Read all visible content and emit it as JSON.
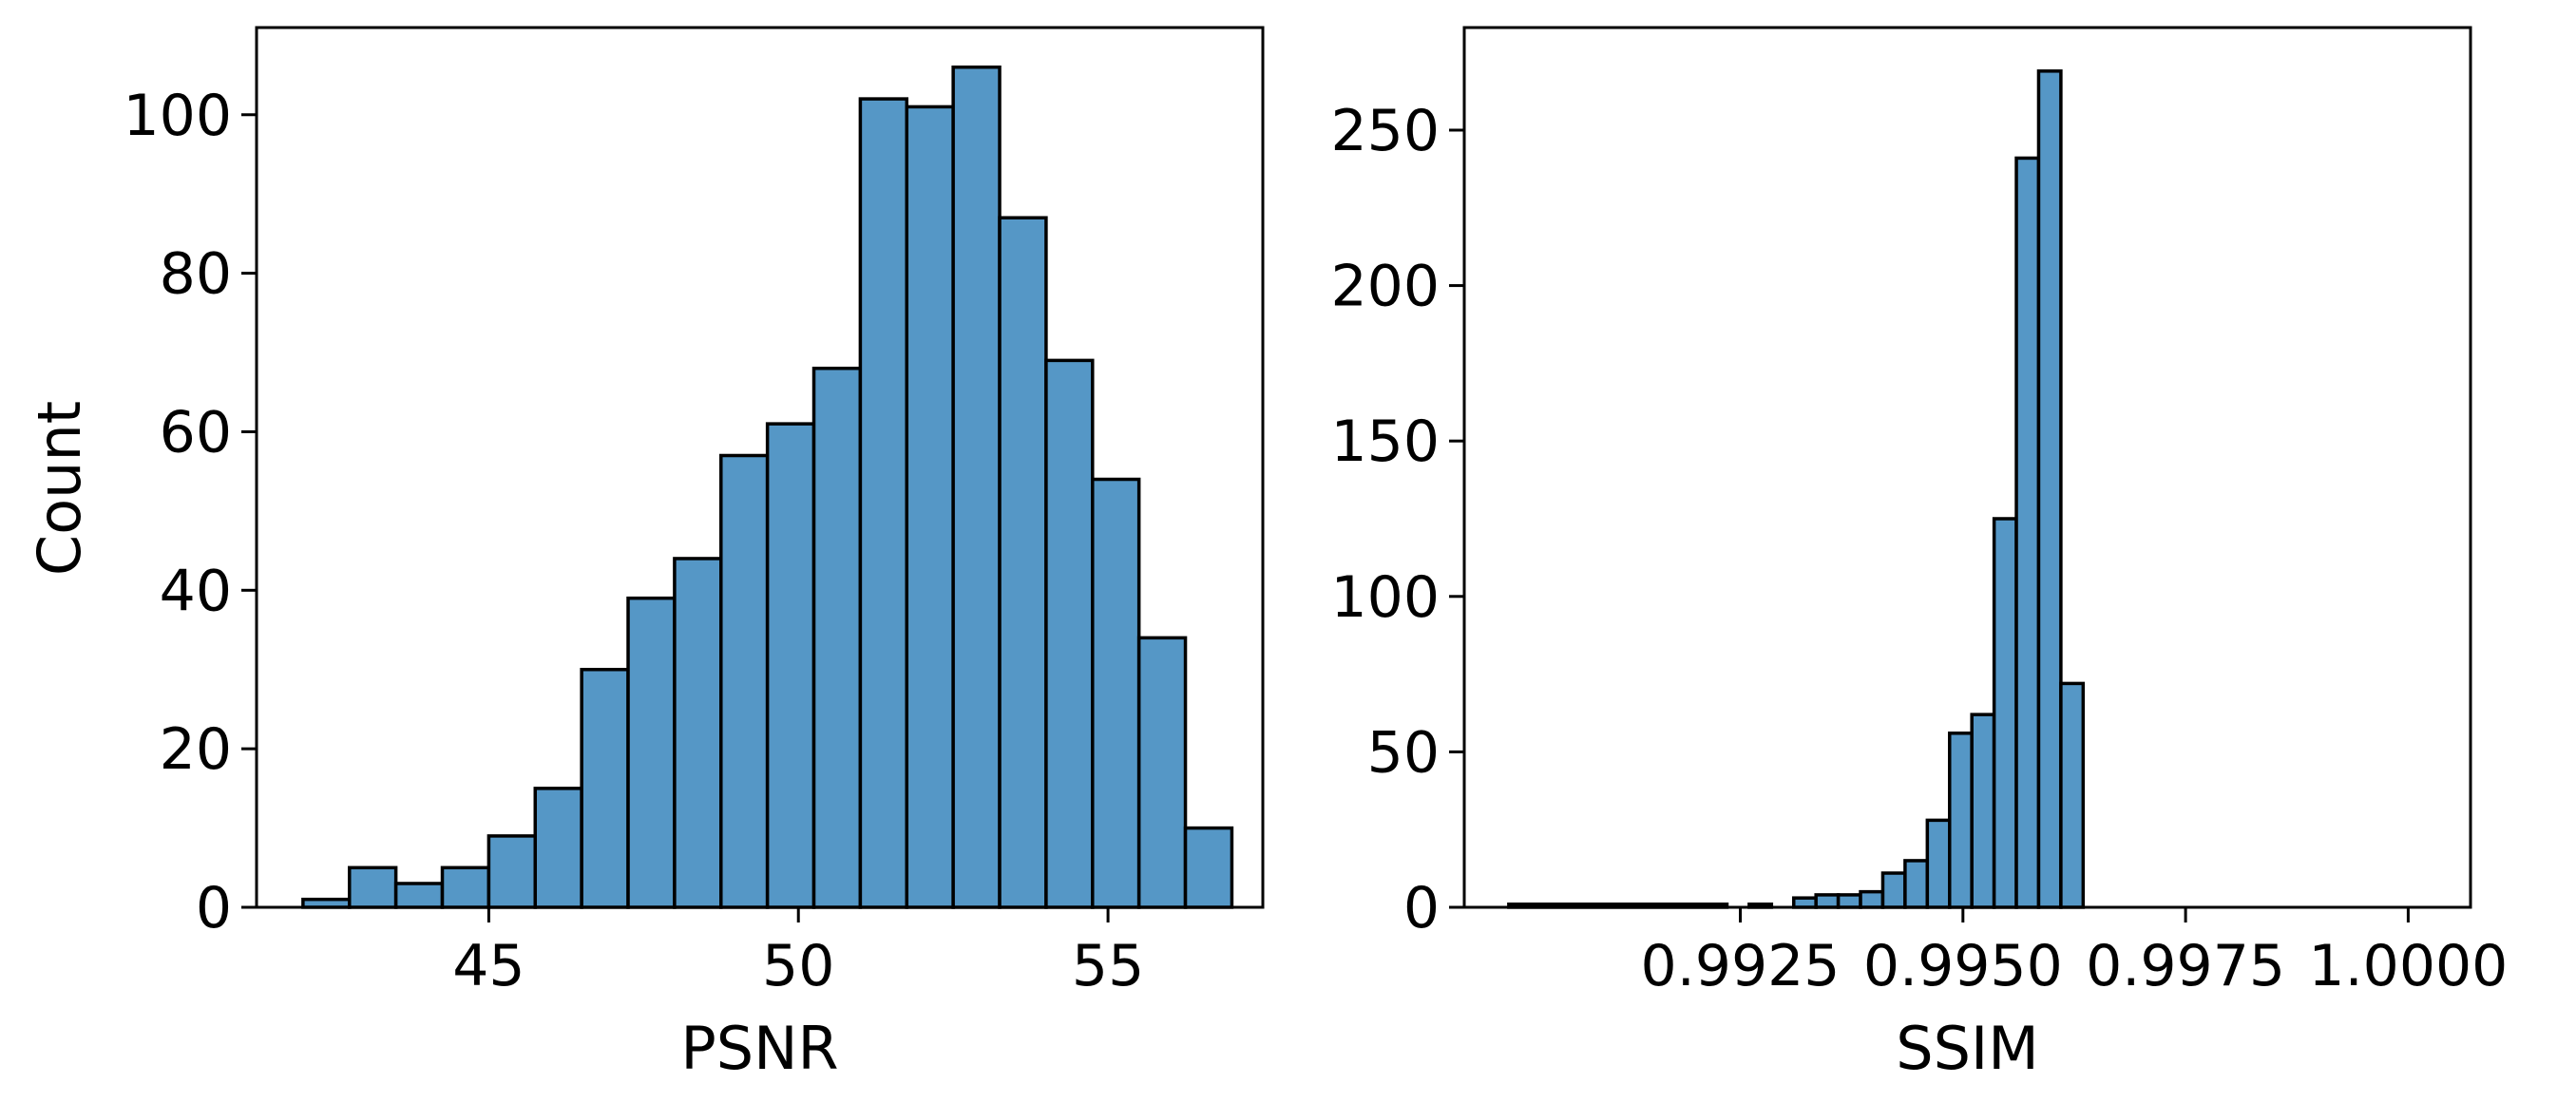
{
  "chart_data": [
    {
      "type": "bar",
      "subtype": "histogram",
      "xlabel": "PSNR",
      "ylabel": "Count",
      "xlim": [
        41.25,
        57.5
      ],
      "ylim": [
        0,
        111
      ],
      "xticks": [
        45,
        50,
        55
      ],
      "xtick_labels": [
        "45",
        "50",
        "55"
      ],
      "yticks": [
        0,
        20,
        40,
        60,
        80,
        100
      ],
      "ytick_labels": [
        "0",
        "20",
        "40",
        "60",
        "80",
        "100"
      ],
      "grid": false,
      "bins": [
        {
          "x0": 42.0,
          "x1": 42.75,
          "count": 1
        },
        {
          "x0": 42.75,
          "x1": 43.5,
          "count": 5
        },
        {
          "x0": 43.5,
          "x1": 44.25,
          "count": 3
        },
        {
          "x0": 44.25,
          "x1": 45.0,
          "count": 5
        },
        {
          "x0": 45.0,
          "x1": 45.75,
          "count": 9
        },
        {
          "x0": 45.75,
          "x1": 46.5,
          "count": 15
        },
        {
          "x0": 46.5,
          "x1": 47.25,
          "count": 30
        },
        {
          "x0": 47.25,
          "x1": 48.0,
          "count": 39
        },
        {
          "x0": 48.0,
          "x1": 48.75,
          "count": 44
        },
        {
          "x0": 48.75,
          "x1": 49.5,
          "count": 57
        },
        {
          "x0": 49.5,
          "x1": 50.25,
          "count": 61
        },
        {
          "x0": 50.25,
          "x1": 51.0,
          "count": 68
        },
        {
          "x0": 51.0,
          "x1": 51.75,
          "count": 102
        },
        {
          "x0": 51.75,
          "x1": 52.5,
          "count": 101
        },
        {
          "x0": 52.5,
          "x1": 53.25,
          "count": 106
        },
        {
          "x0": 53.25,
          "x1": 54.0,
          "count": 87
        },
        {
          "x0": 54.0,
          "x1": 54.75,
          "count": 69
        },
        {
          "x0": 54.75,
          "x1": 55.5,
          "count": 54
        },
        {
          "x0": 55.5,
          "x1": 56.25,
          "count": 34
        },
        {
          "x0": 56.25,
          "x1": 57.0,
          "count": 10
        }
      ],
      "color": "#5597c6"
    },
    {
      "type": "bar",
      "subtype": "histogram",
      "xlabel": "SSIM",
      "ylabel": "",
      "xlim": [
        0.9894,
        1.0007
      ],
      "ylim": [
        0,
        283
      ],
      "xticks": [
        0.9925,
        0.995,
        0.9975,
        1.0
      ],
      "xtick_labels": [
        "0.9925",
        "0.9950",
        "0.9975",
        "1.0000"
      ],
      "yticks": [
        0,
        50,
        100,
        150,
        200,
        250
      ],
      "ytick_labels": [
        "0",
        "50",
        "100",
        "150",
        "200",
        "250"
      ],
      "grid": false,
      "bins": [
        {
          "x0": 0.9899,
          "x1": 0.99235,
          "count": 1
        },
        {
          "x0": 0.99235,
          "x1": 0.9926,
          "count": 0
        },
        {
          "x0": 0.9926,
          "x1": 0.99285,
          "count": 1
        },
        {
          "x0": 0.99285,
          "x1": 0.9931,
          "count": 0
        },
        {
          "x0": 0.9931,
          "x1": 0.99335,
          "count": 3
        },
        {
          "x0": 0.99335,
          "x1": 0.9936,
          "count": 4
        },
        {
          "x0": 0.9936,
          "x1": 0.99385,
          "count": 4
        },
        {
          "x0": 0.99385,
          "x1": 0.9941,
          "count": 5
        },
        {
          "x0": 0.9941,
          "x1": 0.99435,
          "count": 11
        },
        {
          "x0": 0.99435,
          "x1": 0.9946,
          "count": 15
        },
        {
          "x0": 0.9946,
          "x1": 0.99485,
          "count": 28
        },
        {
          "x0": 0.99485,
          "x1": 0.9951,
          "count": 56
        },
        {
          "x0": 0.9951,
          "x1": 0.99535,
          "count": 62
        },
        {
          "x0": 0.99535,
          "x1": 0.9956,
          "count": 125
        },
        {
          "x0": 0.9956,
          "x1": 0.99585,
          "count": 241
        },
        {
          "x0": 0.99585,
          "x1": 0.9961,
          "count": 269
        },
        {
          "x0": 0.9961,
          "x1": 0.99635,
          "count": 72
        }
      ],
      "color": "#5597c6"
    }
  ]
}
